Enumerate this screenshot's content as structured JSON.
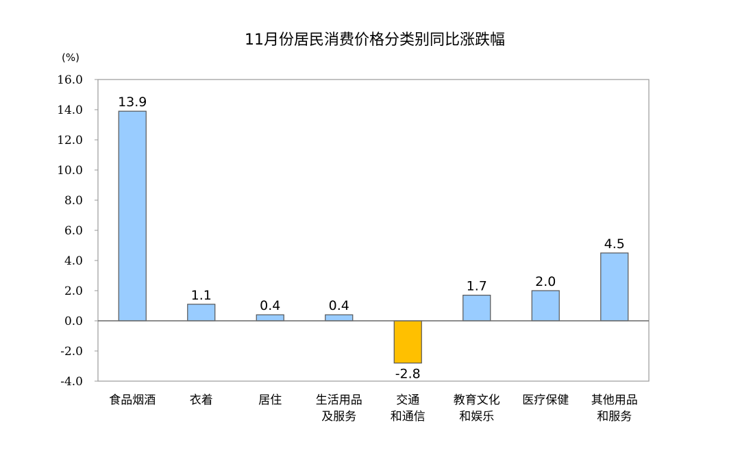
{
  "chart_data": {
    "type": "bar",
    "title": "11月份居民消费价格分类别同比涨跌幅",
    "ylabel": "(%)",
    "ylim": [
      -4.0,
      16.0
    ],
    "yticks": [
      "16.0",
      "14.0",
      "12.0",
      "10.0",
      "8.0",
      "6.0",
      "4.0",
      "2.0",
      "0.0",
      "-2.0",
      "-4.0"
    ],
    "grid": false,
    "categories": [
      [
        "食品烟酒"
      ],
      [
        "衣着"
      ],
      [
        "居住"
      ],
      [
        "生活用品",
        "及服务"
      ],
      [
        "交通",
        "和通信"
      ],
      [
        "教育文化",
        "和娱乐"
      ],
      [
        "医疗保健"
      ],
      [
        "其他用品",
        "和服务"
      ]
    ],
    "values": [
      13.9,
      1.1,
      0.4,
      0.4,
      -2.8,
      1.7,
      2.0,
      4.5
    ],
    "data_labels": [
      "13.9",
      "1.1",
      "0.4",
      "0.4",
      "-2.8",
      "1.7",
      "2.0",
      "4.5"
    ],
    "colors": {
      "positive": "#99ccff",
      "negative": "#ffc000",
      "edge": "#555555",
      "axis": "#666666"
    }
  }
}
